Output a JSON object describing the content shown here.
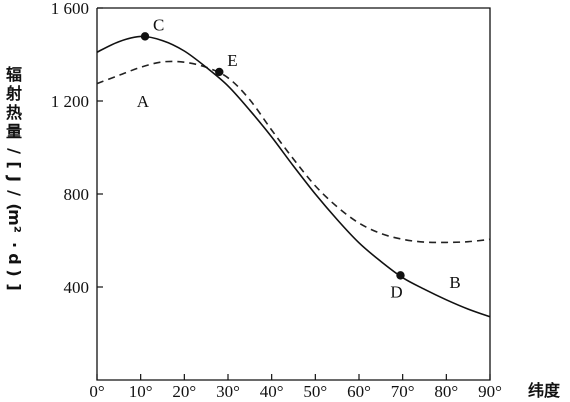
{
  "chart_data": {
    "type": "line",
    "xlabel": "纬度",
    "ylabel": "辐射热量/[J/(m²·d)]",
    "xlim": [
      0,
      90
    ],
    "ylim": [
      0,
      1600
    ],
    "x_ticks": [
      0,
      10,
      20,
      30,
      40,
      50,
      60,
      70,
      80,
      90
    ],
    "x_tick_labels": [
      "0°",
      "10°",
      "20°",
      "30°",
      "40°",
      "50°",
      "60°",
      "70°",
      "80°",
      "90°"
    ],
    "y_ticks": [
      400,
      800,
      1200,
      1600
    ],
    "y_tick_labels": [
      "400",
      "800",
      "1 200",
      "1 600"
    ],
    "series": [
      {
        "name": "A",
        "style": "dashed",
        "x": [
          0,
          5,
          10,
          15,
          20,
          25,
          30,
          35,
          40,
          45,
          50,
          55,
          60,
          65,
          70,
          75,
          80,
          85,
          90
        ],
        "y": [
          1275,
          1310,
          1345,
          1368,
          1367,
          1345,
          1300,
          1205,
          1075,
          950,
          835,
          745,
          675,
          630,
          605,
          593,
          592,
          595,
          605
        ]
      },
      {
        "name": "B",
        "style": "solid",
        "x": [
          0,
          5,
          10,
          15,
          20,
          25,
          30,
          35,
          40,
          45,
          50,
          55,
          60,
          65,
          70,
          75,
          80,
          85,
          90
        ],
        "y": [
          1410,
          1455,
          1478,
          1460,
          1415,
          1345,
          1265,
          1160,
          1045,
          920,
          800,
          690,
          590,
          510,
          440,
          390,
          345,
          305,
          272
        ]
      }
    ],
    "points": [
      {
        "label": "C",
        "x": 11,
        "y": 1478
      },
      {
        "label": "E",
        "x": 28,
        "y": 1325
      },
      {
        "label": "D",
        "x": 69.5,
        "y": 450
      }
    ]
  },
  "y_axis_title_chars": [
    "辐",
    "射",
    "热",
    "量",
    "/",
    "[",
    "J",
    "/",
    "(",
    "m²",
    "·",
    "d",
    ")",
    "]"
  ]
}
